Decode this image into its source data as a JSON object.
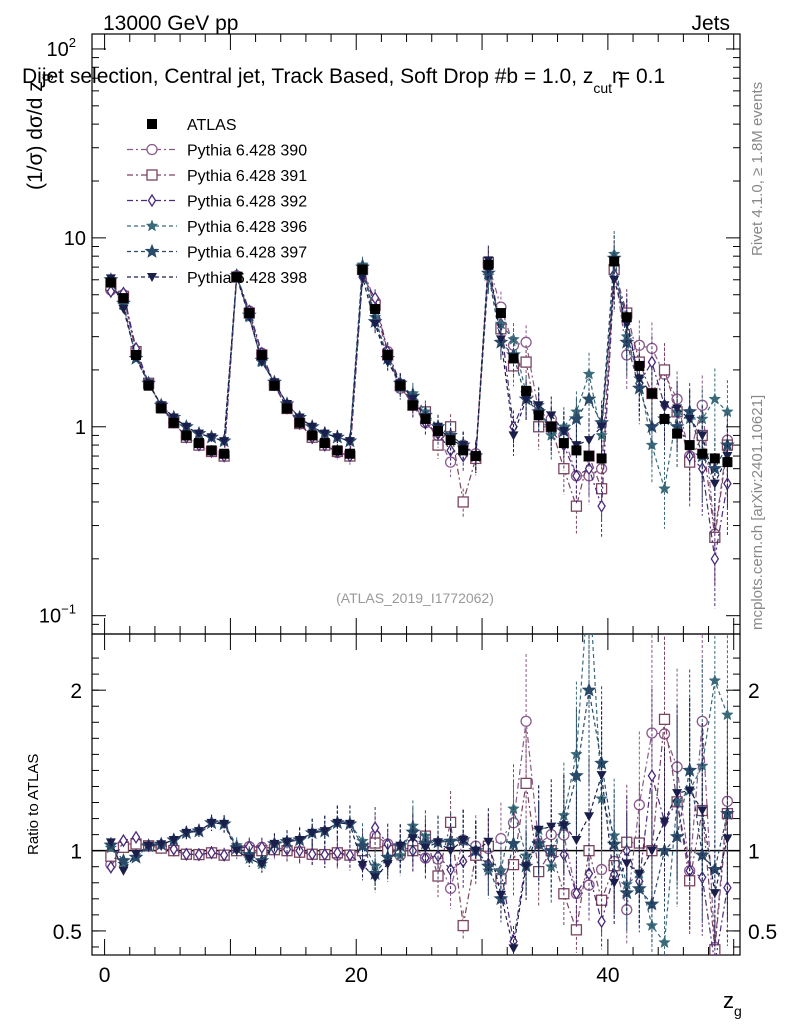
{
  "header": {
    "left": "13000 GeV pp",
    "right": "Jets",
    "title": "Dijet selection, Central jet, Track Based, Soft Drop #b = 1.0, z",
    "title_sub": "cut",
    "title_tail": " = 0.1",
    "eta_glyph": "η"
  },
  "side_labels": {
    "rivet": "Rivet 4.1.0, ≥ 1.8M events",
    "mcplots": "mcplots.cern.ch [arXiv:2401.10621]"
  },
  "watermark": "(ATLAS_2019_I1772062)",
  "colors": {
    "atlas": "#000000",
    "p390": "#8a5a8c",
    "p391": "#7a4560",
    "p392": "#4a2a7a",
    "p396": "#3a6a7a",
    "p397": "#2a4a6a",
    "p398": "#1a1e4a"
  },
  "chart_data": [
    {
      "type": "scatter",
      "panel": "main",
      "ylabel": "(1/σ) dσ/d z",
      "ylabel_sub": "g",
      "yscale": "log",
      "ylim": [
        0.08,
        120
      ],
      "xlim": [
        -1,
        50.5
      ],
      "yticks": [
        {
          "v": 100,
          "label": "10",
          "exp": "2"
        },
        {
          "v": 10,
          "label": "10",
          "exp": ""
        },
        {
          "v": 1,
          "label": "1",
          "exp": ""
        },
        {
          "v": 0.1,
          "label": "10",
          "exp": "−1"
        }
      ],
      "x": [
        0.5,
        1.5,
        2.5,
        3.5,
        4.5,
        5.5,
        6.5,
        7.5,
        8.5,
        9.5,
        10.5,
        11.5,
        12.5,
        13.5,
        14.5,
        15.5,
        16.5,
        17.5,
        18.5,
        19.5,
        20.5,
        21.5,
        22.5,
        23.5,
        24.5,
        25.5,
        26.5,
        27.5,
        28.5,
        29.5,
        30.5,
        31.5,
        32.5,
        33.5,
        34.5,
        35.5,
        36.5,
        37.5,
        38.5,
        39.5,
        40.5,
        41.5,
        42.5,
        43.5,
        44.5,
        45.5,
        46.5,
        47.5,
        48.5,
        49.5
      ],
      "series": [
        {
          "name": "ATLAS",
          "marker": "square-filled",
          "color_key": "atlas",
          "values": [
            5.8,
            4.8,
            2.4,
            1.65,
            1.25,
            1.05,
            0.9,
            0.82,
            0.75,
            0.72,
            6.2,
            4.0,
            2.4,
            1.65,
            1.25,
            1.05,
            0.9,
            0.82,
            0.75,
            0.72,
            6.8,
            4.2,
            2.4,
            1.65,
            1.3,
            1.1,
            0.95,
            0.85,
            0.75,
            0.7,
            7.2,
            4.0,
            2.3,
            1.55,
            1.15,
            1.0,
            0.82,
            0.75,
            0.7,
            0.68,
            7.5,
            3.8,
            2.1,
            1.5,
            1.1,
            0.92,
            0.8,
            0.72,
            0.68,
            0.65
          ]
        },
        {
          "name": "Pythia 6.428 390",
          "marker": "circle-open",
          "color_key": "p390",
          "values": [
            5.3,
            5.0,
            2.5,
            1.7,
            1.28,
            1.05,
            0.88,
            0.8,
            0.74,
            0.7,
            6.3,
            4.1,
            2.45,
            1.68,
            1.26,
            1.04,
            0.88,
            0.8,
            0.73,
            0.7,
            6.9,
            4.6,
            2.5,
            1.6,
            1.35,
            1.05,
            0.9,
            0.65,
            0.8,
            0.72,
            7.3,
            4.3,
            2.7,
            2.8,
            1.2,
            1.1,
            0.9,
            0.55,
            0.55,
            0.6,
            7.0,
            2.4,
            2.7,
            2.6,
            1.9,
            1.4,
            0.7,
            1.3,
            0.27,
            0.85
          ]
        },
        {
          "name": "Pythia 6.428 391",
          "marker": "square-open",
          "color_key": "p391",
          "values": [
            5.6,
            4.9,
            2.5,
            1.7,
            1.27,
            1.05,
            0.88,
            0.8,
            0.74,
            0.7,
            6.2,
            4.0,
            2.4,
            1.66,
            1.25,
            1.04,
            0.88,
            0.8,
            0.74,
            0.7,
            6.8,
            4.4,
            2.4,
            1.65,
            1.3,
            1.2,
            0.8,
            1.0,
            0.4,
            0.68,
            7.4,
            3.3,
            2.1,
            2.2,
            1.0,
            1.0,
            0.6,
            0.38,
            0.7,
            0.47,
            6.8,
            4.0,
            2.2,
            1.5,
            2.0,
            1.2,
            0.65,
            0.9,
            0.26,
            0.8
          ]
        },
        {
          "name": "Pythia 6.428 392",
          "marker": "diamond-open",
          "color_key": "p392",
          "values": [
            5.2,
            5.1,
            2.6,
            1.7,
            1.3,
            1.06,
            0.88,
            0.8,
            0.74,
            0.7,
            6.3,
            4.1,
            2.45,
            1.67,
            1.26,
            1.05,
            0.88,
            0.8,
            0.74,
            0.7,
            6.2,
            4.8,
            2.5,
            1.7,
            1.3,
            1.05,
            0.92,
            0.75,
            0.7,
            0.7,
            6.6,
            3.5,
            1.0,
            1.45,
            1.2,
            0.95,
            0.8,
            0.55,
            0.6,
            0.38,
            6.4,
            3.8,
            1.7,
            2.2,
            1.3,
            1.2,
            0.7,
            0.6,
            0.2,
            0.5
          ]
        },
        {
          "name": "Pythia 6.428 396",
          "marker": "star-filled",
          "color_key": "p396",
          "values": [
            5.9,
            4.4,
            2.3,
            1.7,
            1.3,
            1.12,
            1.0,
            0.92,
            0.88,
            0.84,
            6.4,
            3.8,
            2.2,
            1.72,
            1.32,
            1.12,
            1.0,
            0.92,
            0.88,
            0.84,
            7.2,
            3.8,
            2.3,
            1.6,
            1.5,
            1.2,
            1.0,
            0.9,
            0.8,
            0.7,
            6.3,
            3.5,
            2.9,
            1.5,
            1.3,
            0.9,
            1.0,
            1.2,
            1.9,
            0.9,
            8.2,
            3.0,
            1.8,
            0.8,
            0.47,
            1.2,
            1.1,
            1.1,
            1.4,
            1.2
          ]
        },
        {
          "name": "Pythia 6.428 397",
          "marker": "star-open",
          "color_key": "p397",
          "values": [
            6.0,
            4.5,
            2.3,
            1.7,
            1.3,
            1.12,
            1.0,
            0.92,
            0.88,
            0.84,
            6.3,
            3.9,
            2.25,
            1.72,
            1.32,
            1.12,
            1.0,
            0.92,
            0.88,
            0.84,
            7.0,
            3.6,
            2.3,
            1.7,
            1.45,
            1.15,
            1.0,
            0.9,
            0.8,
            0.7,
            6.5,
            2.8,
            2.4,
            1.4,
            1.2,
            1.0,
            0.95,
            1.1,
            1.4,
            1.05,
            7.8,
            2.8,
            1.6,
            1.0,
            1.1,
            1.0,
            1.2,
            0.7,
            0.6,
            0.8
          ]
        },
        {
          "name": "Pythia 6.428 398",
          "marker": "triangle-down-filled",
          "color_key": "p398",
          "values": [
            6.1,
            4.2,
            2.35,
            1.7,
            1.3,
            1.12,
            1.0,
            0.92,
            0.88,
            0.84,
            6.2,
            3.8,
            2.2,
            1.72,
            1.32,
            1.12,
            1.0,
            0.92,
            0.88,
            0.84,
            6.2,
            3.5,
            2.2,
            1.7,
            1.4,
            1.12,
            1.0,
            0.85,
            0.8,
            0.7,
            7.6,
            2.9,
            0.9,
            1.4,
            1.3,
            1.15,
            0.95,
            0.8,
            0.85,
            1.0,
            6.0,
            3.5,
            1.8,
            1.5,
            1.3,
            1.25,
            1.1,
            0.9,
            0.5,
            0.7
          ]
        }
      ]
    },
    {
      "type": "scatter",
      "panel": "ratio",
      "ylabel": "Ratio to ATLAS",
      "xlabel": "z",
      "xlabel_sub": "g",
      "ylim": [
        0.35,
        2.35
      ],
      "xlim": [
        -1,
        50.5
      ],
      "yticks": [
        {
          "v": 0.5,
          "label": "0.5"
        },
        {
          "v": 1,
          "label": "1"
        },
        {
          "v": 2,
          "label": "2"
        }
      ],
      "xticks": [
        {
          "v": 0,
          "label": "0"
        },
        {
          "v": 20,
          "label": "20"
        },
        {
          "v": 40,
          "label": "40"
        }
      ]
    }
  ]
}
